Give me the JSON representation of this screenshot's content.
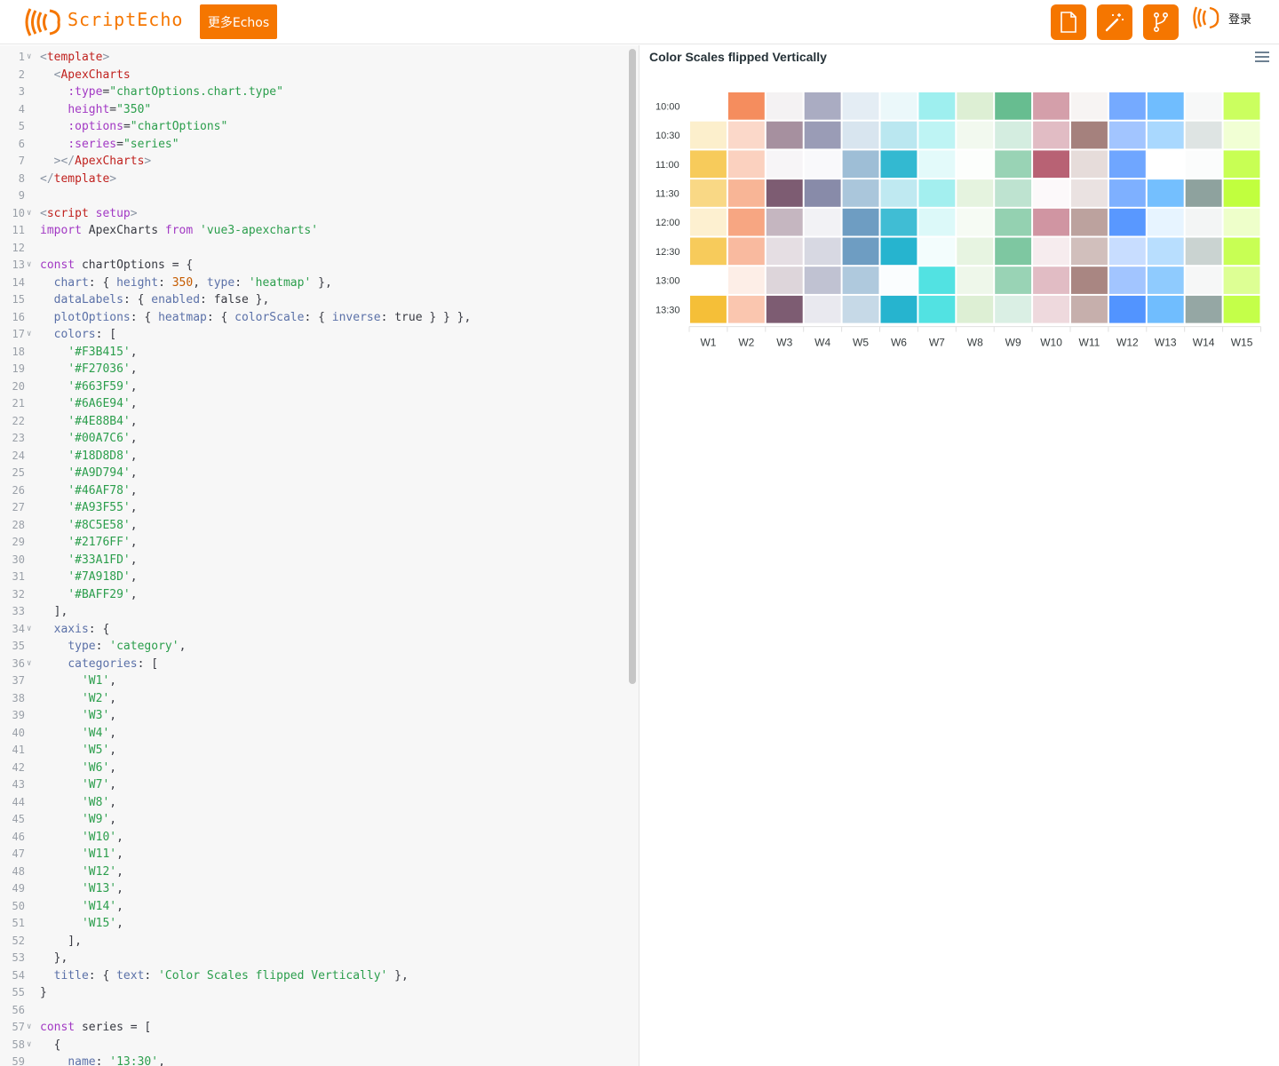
{
  "header": {
    "brand": "ScriptEcho",
    "more_button": "更多Echos",
    "login": "登录",
    "icons": [
      "file-icon",
      "magic-wand-icon",
      "branch-icon"
    ],
    "accent": "#F57600"
  },
  "editor": {
    "lines": [
      {
        "n": 1,
        "fold": true,
        "t": [
          [
            "angle",
            "<"
          ],
          [
            "tag",
            "template"
          ],
          [
            "angle",
            ">"
          ]
        ]
      },
      {
        "n": 2,
        "t": [
          [
            "plain",
            "  "
          ],
          [
            "angle",
            "<"
          ],
          [
            "tag",
            "ApexCharts"
          ]
        ]
      },
      {
        "n": 3,
        "t": [
          [
            "plain",
            "    "
          ],
          [
            "attr",
            ":type"
          ],
          [
            "plain",
            "="
          ],
          [
            "str",
            "\"chartOptions.chart.type\""
          ]
        ]
      },
      {
        "n": 4,
        "t": [
          [
            "plain",
            "    "
          ],
          [
            "attr",
            "height"
          ],
          [
            "plain",
            "="
          ],
          [
            "str",
            "\"350\""
          ]
        ]
      },
      {
        "n": 5,
        "t": [
          [
            "plain",
            "    "
          ],
          [
            "attr",
            ":options"
          ],
          [
            "plain",
            "="
          ],
          [
            "str",
            "\"chartOptions\""
          ]
        ]
      },
      {
        "n": 6,
        "t": [
          [
            "plain",
            "    "
          ],
          [
            "attr",
            ":series"
          ],
          [
            "plain",
            "="
          ],
          [
            "str",
            "\"series\""
          ]
        ]
      },
      {
        "n": 7,
        "t": [
          [
            "plain",
            "  "
          ],
          [
            "angle",
            "></"
          ],
          [
            "tag",
            "ApexCharts"
          ],
          [
            "angle",
            ">"
          ]
        ]
      },
      {
        "n": 8,
        "t": [
          [
            "angle",
            "</"
          ],
          [
            "tag",
            "template"
          ],
          [
            "angle",
            ">"
          ]
        ]
      },
      {
        "n": 9,
        "t": []
      },
      {
        "n": 10,
        "fold": true,
        "t": [
          [
            "angle",
            "<"
          ],
          [
            "tag",
            "script"
          ],
          [
            "plain",
            " "
          ],
          [
            "attr",
            "setup"
          ],
          [
            "angle",
            ">"
          ]
        ]
      },
      {
        "n": 11,
        "t": [
          [
            "kw",
            "import"
          ],
          [
            "plain",
            " ApexCharts "
          ],
          [
            "kw",
            "from"
          ],
          [
            "plain",
            " "
          ],
          [
            "str",
            "'vue3-apexcharts'"
          ]
        ]
      },
      {
        "n": 12,
        "t": []
      },
      {
        "n": 13,
        "fold": true,
        "t": [
          [
            "kw",
            "const"
          ],
          [
            "plain",
            " chartOptions = {"
          ]
        ]
      },
      {
        "n": 14,
        "t": [
          [
            "plain",
            "  "
          ],
          [
            "prop",
            "chart"
          ],
          [
            "plain",
            ": { "
          ],
          [
            "prop",
            "height"
          ],
          [
            "plain",
            ": "
          ],
          [
            "num",
            "350"
          ],
          [
            "plain",
            ", "
          ],
          [
            "prop",
            "type"
          ],
          [
            "plain",
            ": "
          ],
          [
            "str",
            "'heatmap'"
          ],
          [
            "plain",
            " },"
          ]
        ]
      },
      {
        "n": 15,
        "t": [
          [
            "plain",
            "  "
          ],
          [
            "prop",
            "dataLabels"
          ],
          [
            "plain",
            ": { "
          ],
          [
            "prop",
            "enabled"
          ],
          [
            "plain",
            ": "
          ],
          [
            "plain",
            "false"
          ],
          [
            "plain",
            " },"
          ]
        ]
      },
      {
        "n": 16,
        "t": [
          [
            "plain",
            "  "
          ],
          [
            "prop",
            "plotOptions"
          ],
          [
            "plain",
            ": { "
          ],
          [
            "prop",
            "heatmap"
          ],
          [
            "plain",
            ": { "
          ],
          [
            "prop",
            "colorScale"
          ],
          [
            "plain",
            ": { "
          ],
          [
            "prop",
            "inverse"
          ],
          [
            "plain",
            ": true } } },"
          ]
        ]
      },
      {
        "n": 17,
        "fold": true,
        "t": [
          [
            "plain",
            "  "
          ],
          [
            "prop",
            "colors"
          ],
          [
            "plain",
            ": ["
          ]
        ]
      },
      {
        "n": 18,
        "t": [
          [
            "plain",
            "    "
          ],
          [
            "str",
            "'#F3B415'"
          ],
          [
            "plain",
            ","
          ]
        ]
      },
      {
        "n": 19,
        "t": [
          [
            "plain",
            "    "
          ],
          [
            "str",
            "'#F27036'"
          ],
          [
            "plain",
            ","
          ]
        ]
      },
      {
        "n": 20,
        "t": [
          [
            "plain",
            "    "
          ],
          [
            "str",
            "'#663F59'"
          ],
          [
            "plain",
            ","
          ]
        ]
      },
      {
        "n": 21,
        "t": [
          [
            "plain",
            "    "
          ],
          [
            "str",
            "'#6A6E94'"
          ],
          [
            "plain",
            ","
          ]
        ]
      },
      {
        "n": 22,
        "t": [
          [
            "plain",
            "    "
          ],
          [
            "str",
            "'#4E88B4'"
          ],
          [
            "plain",
            ","
          ]
        ]
      },
      {
        "n": 23,
        "t": [
          [
            "plain",
            "    "
          ],
          [
            "str",
            "'#00A7C6'"
          ],
          [
            "plain",
            ","
          ]
        ]
      },
      {
        "n": 24,
        "t": [
          [
            "plain",
            "    "
          ],
          [
            "str",
            "'#18D8D8'"
          ],
          [
            "plain",
            ","
          ]
        ]
      },
      {
        "n": 25,
        "t": [
          [
            "plain",
            "    "
          ],
          [
            "str",
            "'#A9D794'"
          ],
          [
            "plain",
            ","
          ]
        ]
      },
      {
        "n": 26,
        "t": [
          [
            "plain",
            "    "
          ],
          [
            "str",
            "'#46AF78'"
          ],
          [
            "plain",
            ","
          ]
        ]
      },
      {
        "n": 27,
        "t": [
          [
            "plain",
            "    "
          ],
          [
            "str",
            "'#A93F55'"
          ],
          [
            "plain",
            ","
          ]
        ]
      },
      {
        "n": 28,
        "t": [
          [
            "plain",
            "    "
          ],
          [
            "str",
            "'#8C5E58'"
          ],
          [
            "plain",
            ","
          ]
        ]
      },
      {
        "n": 29,
        "t": [
          [
            "plain",
            "    "
          ],
          [
            "str",
            "'#2176FF'"
          ],
          [
            "plain",
            ","
          ]
        ]
      },
      {
        "n": 30,
        "t": [
          [
            "plain",
            "    "
          ],
          [
            "str",
            "'#33A1FD'"
          ],
          [
            "plain",
            ","
          ]
        ]
      },
      {
        "n": 31,
        "t": [
          [
            "plain",
            "    "
          ],
          [
            "str",
            "'#7A918D'"
          ],
          [
            "plain",
            ","
          ]
        ]
      },
      {
        "n": 32,
        "t": [
          [
            "plain",
            "    "
          ],
          [
            "str",
            "'#BAFF29'"
          ],
          [
            "plain",
            ","
          ]
        ]
      },
      {
        "n": 33,
        "t": [
          [
            "plain",
            "  ],"
          ]
        ]
      },
      {
        "n": 34,
        "fold": true,
        "t": [
          [
            "plain",
            "  "
          ],
          [
            "prop",
            "xaxis"
          ],
          [
            "plain",
            ": {"
          ]
        ]
      },
      {
        "n": 35,
        "t": [
          [
            "plain",
            "    "
          ],
          [
            "prop",
            "type"
          ],
          [
            "plain",
            ": "
          ],
          [
            "str",
            "'category'"
          ],
          [
            "plain",
            ","
          ]
        ]
      },
      {
        "n": 36,
        "fold": true,
        "t": [
          [
            "plain",
            "    "
          ],
          [
            "prop",
            "categories"
          ],
          [
            "plain",
            ": ["
          ]
        ]
      },
      {
        "n": 37,
        "t": [
          [
            "plain",
            "      "
          ],
          [
            "str",
            "'W1'"
          ],
          [
            "plain",
            ","
          ]
        ]
      },
      {
        "n": 38,
        "t": [
          [
            "plain",
            "      "
          ],
          [
            "str",
            "'W2'"
          ],
          [
            "plain",
            ","
          ]
        ]
      },
      {
        "n": 39,
        "t": [
          [
            "plain",
            "      "
          ],
          [
            "str",
            "'W3'"
          ],
          [
            "plain",
            ","
          ]
        ]
      },
      {
        "n": 40,
        "t": [
          [
            "plain",
            "      "
          ],
          [
            "str",
            "'W4'"
          ],
          [
            "plain",
            ","
          ]
        ]
      },
      {
        "n": 41,
        "t": [
          [
            "plain",
            "      "
          ],
          [
            "str",
            "'W5'"
          ],
          [
            "plain",
            ","
          ]
        ]
      },
      {
        "n": 42,
        "t": [
          [
            "plain",
            "      "
          ],
          [
            "str",
            "'W6'"
          ],
          [
            "plain",
            ","
          ]
        ]
      },
      {
        "n": 43,
        "t": [
          [
            "plain",
            "      "
          ],
          [
            "str",
            "'W7'"
          ],
          [
            "plain",
            ","
          ]
        ]
      },
      {
        "n": 44,
        "t": [
          [
            "plain",
            "      "
          ],
          [
            "str",
            "'W8'"
          ],
          [
            "plain",
            ","
          ]
        ]
      },
      {
        "n": 45,
        "t": [
          [
            "plain",
            "      "
          ],
          [
            "str",
            "'W9'"
          ],
          [
            "plain",
            ","
          ]
        ]
      },
      {
        "n": 46,
        "t": [
          [
            "plain",
            "      "
          ],
          [
            "str",
            "'W10'"
          ],
          [
            "plain",
            ","
          ]
        ]
      },
      {
        "n": 47,
        "t": [
          [
            "plain",
            "      "
          ],
          [
            "str",
            "'W11'"
          ],
          [
            "plain",
            ","
          ]
        ]
      },
      {
        "n": 48,
        "t": [
          [
            "plain",
            "      "
          ],
          [
            "str",
            "'W12'"
          ],
          [
            "plain",
            ","
          ]
        ]
      },
      {
        "n": 49,
        "t": [
          [
            "plain",
            "      "
          ],
          [
            "str",
            "'W13'"
          ],
          [
            "plain",
            ","
          ]
        ]
      },
      {
        "n": 50,
        "t": [
          [
            "plain",
            "      "
          ],
          [
            "str",
            "'W14'"
          ],
          [
            "plain",
            ","
          ]
        ]
      },
      {
        "n": 51,
        "t": [
          [
            "plain",
            "      "
          ],
          [
            "str",
            "'W15'"
          ],
          [
            "plain",
            ","
          ]
        ]
      },
      {
        "n": 52,
        "t": [
          [
            "plain",
            "    ],"
          ]
        ]
      },
      {
        "n": 53,
        "t": [
          [
            "plain",
            "  },"
          ]
        ]
      },
      {
        "n": 54,
        "t": [
          [
            "plain",
            "  "
          ],
          [
            "prop",
            "title"
          ],
          [
            "plain",
            ": { "
          ],
          [
            "prop",
            "text"
          ],
          [
            "plain",
            ": "
          ],
          [
            "str",
            "'Color Scales flipped Vertically'"
          ],
          [
            "plain",
            " },"
          ]
        ]
      },
      {
        "n": 55,
        "t": [
          [
            "plain",
            "}"
          ]
        ]
      },
      {
        "n": 56,
        "t": []
      },
      {
        "n": 57,
        "fold": true,
        "t": [
          [
            "kw",
            "const"
          ],
          [
            "plain",
            " series = ["
          ]
        ]
      },
      {
        "n": 58,
        "fold": true,
        "t": [
          [
            "plain",
            "  {"
          ]
        ]
      },
      {
        "n": 59,
        "t": [
          [
            "plain",
            "    "
          ],
          [
            "prop",
            "name"
          ],
          [
            "plain",
            ": "
          ],
          [
            "str",
            "'13:30'"
          ],
          [
            "plain",
            ","
          ]
        ]
      }
    ]
  },
  "chart_data": {
    "type": "heatmap",
    "title": "Color Scales flipped Vertically",
    "categories": [
      "W1",
      "W2",
      "W3",
      "W4",
      "W5",
      "W6",
      "W7",
      "W8",
      "W9",
      "W10",
      "W11",
      "W12",
      "W13",
      "W14",
      "W15"
    ],
    "colors": [
      "#F3B415",
      "#F27036",
      "#663F59",
      "#6A6E94",
      "#4E88B4",
      "#00A7C6",
      "#18D8D8",
      "#A9D794",
      "#46AF78",
      "#A93F55",
      "#8C5E58",
      "#2176FF",
      "#33A1FD",
      "#7A918D",
      "#BAFF29"
    ],
    "series": [
      {
        "name": "10:00",
        "values": [
          0.0,
          0.8,
          0.07,
          0.57,
          0.15,
          0.08,
          0.42,
          0.4,
          0.82,
          0.5,
          0.07,
          0.62,
          0.7,
          0.06,
          0.75
        ]
      },
      {
        "name": "10:30",
        "values": [
          0.22,
          0.27,
          0.58,
          0.68,
          0.22,
          0.27,
          0.28,
          0.15,
          0.23,
          0.35,
          0.78,
          0.42,
          0.42,
          0.25,
          0.2
        ]
      },
      {
        "name": "11:00",
        "values": [
          0.7,
          0.32,
          0.05,
          0.04,
          0.55,
          0.8,
          0.12,
          0.03,
          0.55,
          0.82,
          0.22,
          0.65,
          0.0,
          0.03,
          0.8
        ]
      },
      {
        "name": "11:30",
        "values": [
          0.52,
          0.52,
          0.85,
          0.8,
          0.48,
          0.25,
          0.4,
          0.3,
          0.35,
          0.03,
          0.18,
          0.58,
          0.68,
          0.85,
          0.9
        ]
      },
      {
        "name": "12:00",
        "values": [
          0.2,
          0.62,
          0.38,
          0.09,
          0.82,
          0.75,
          0.15,
          0.1,
          0.58,
          0.55,
          0.58,
          0.75,
          0.12,
          0.09,
          0.25
        ]
      },
      {
        "name": "12:30",
        "values": [
          0.7,
          0.48,
          0.17,
          0.27,
          0.82,
          0.85,
          0.05,
          0.28,
          0.7,
          0.1,
          0.4,
          0.25,
          0.35,
          0.4,
          0.8
        ]
      },
      {
        "name": "13:00",
        "values": [
          0.0,
          0.12,
          0.22,
          0.42,
          0.45,
          0.02,
          0.75,
          0.2,
          0.55,
          0.35,
          0.75,
          0.42,
          0.55,
          0.07,
          0.5
        ]
      },
      {
        "name": "13:30",
        "values": [
          0.85,
          0.4,
          0.85,
          0.15,
          0.32,
          0.85,
          0.75,
          0.4,
          0.2,
          0.2,
          0.5,
          0.78,
          0.7,
          0.8,
          0.85
        ]
      }
    ]
  }
}
